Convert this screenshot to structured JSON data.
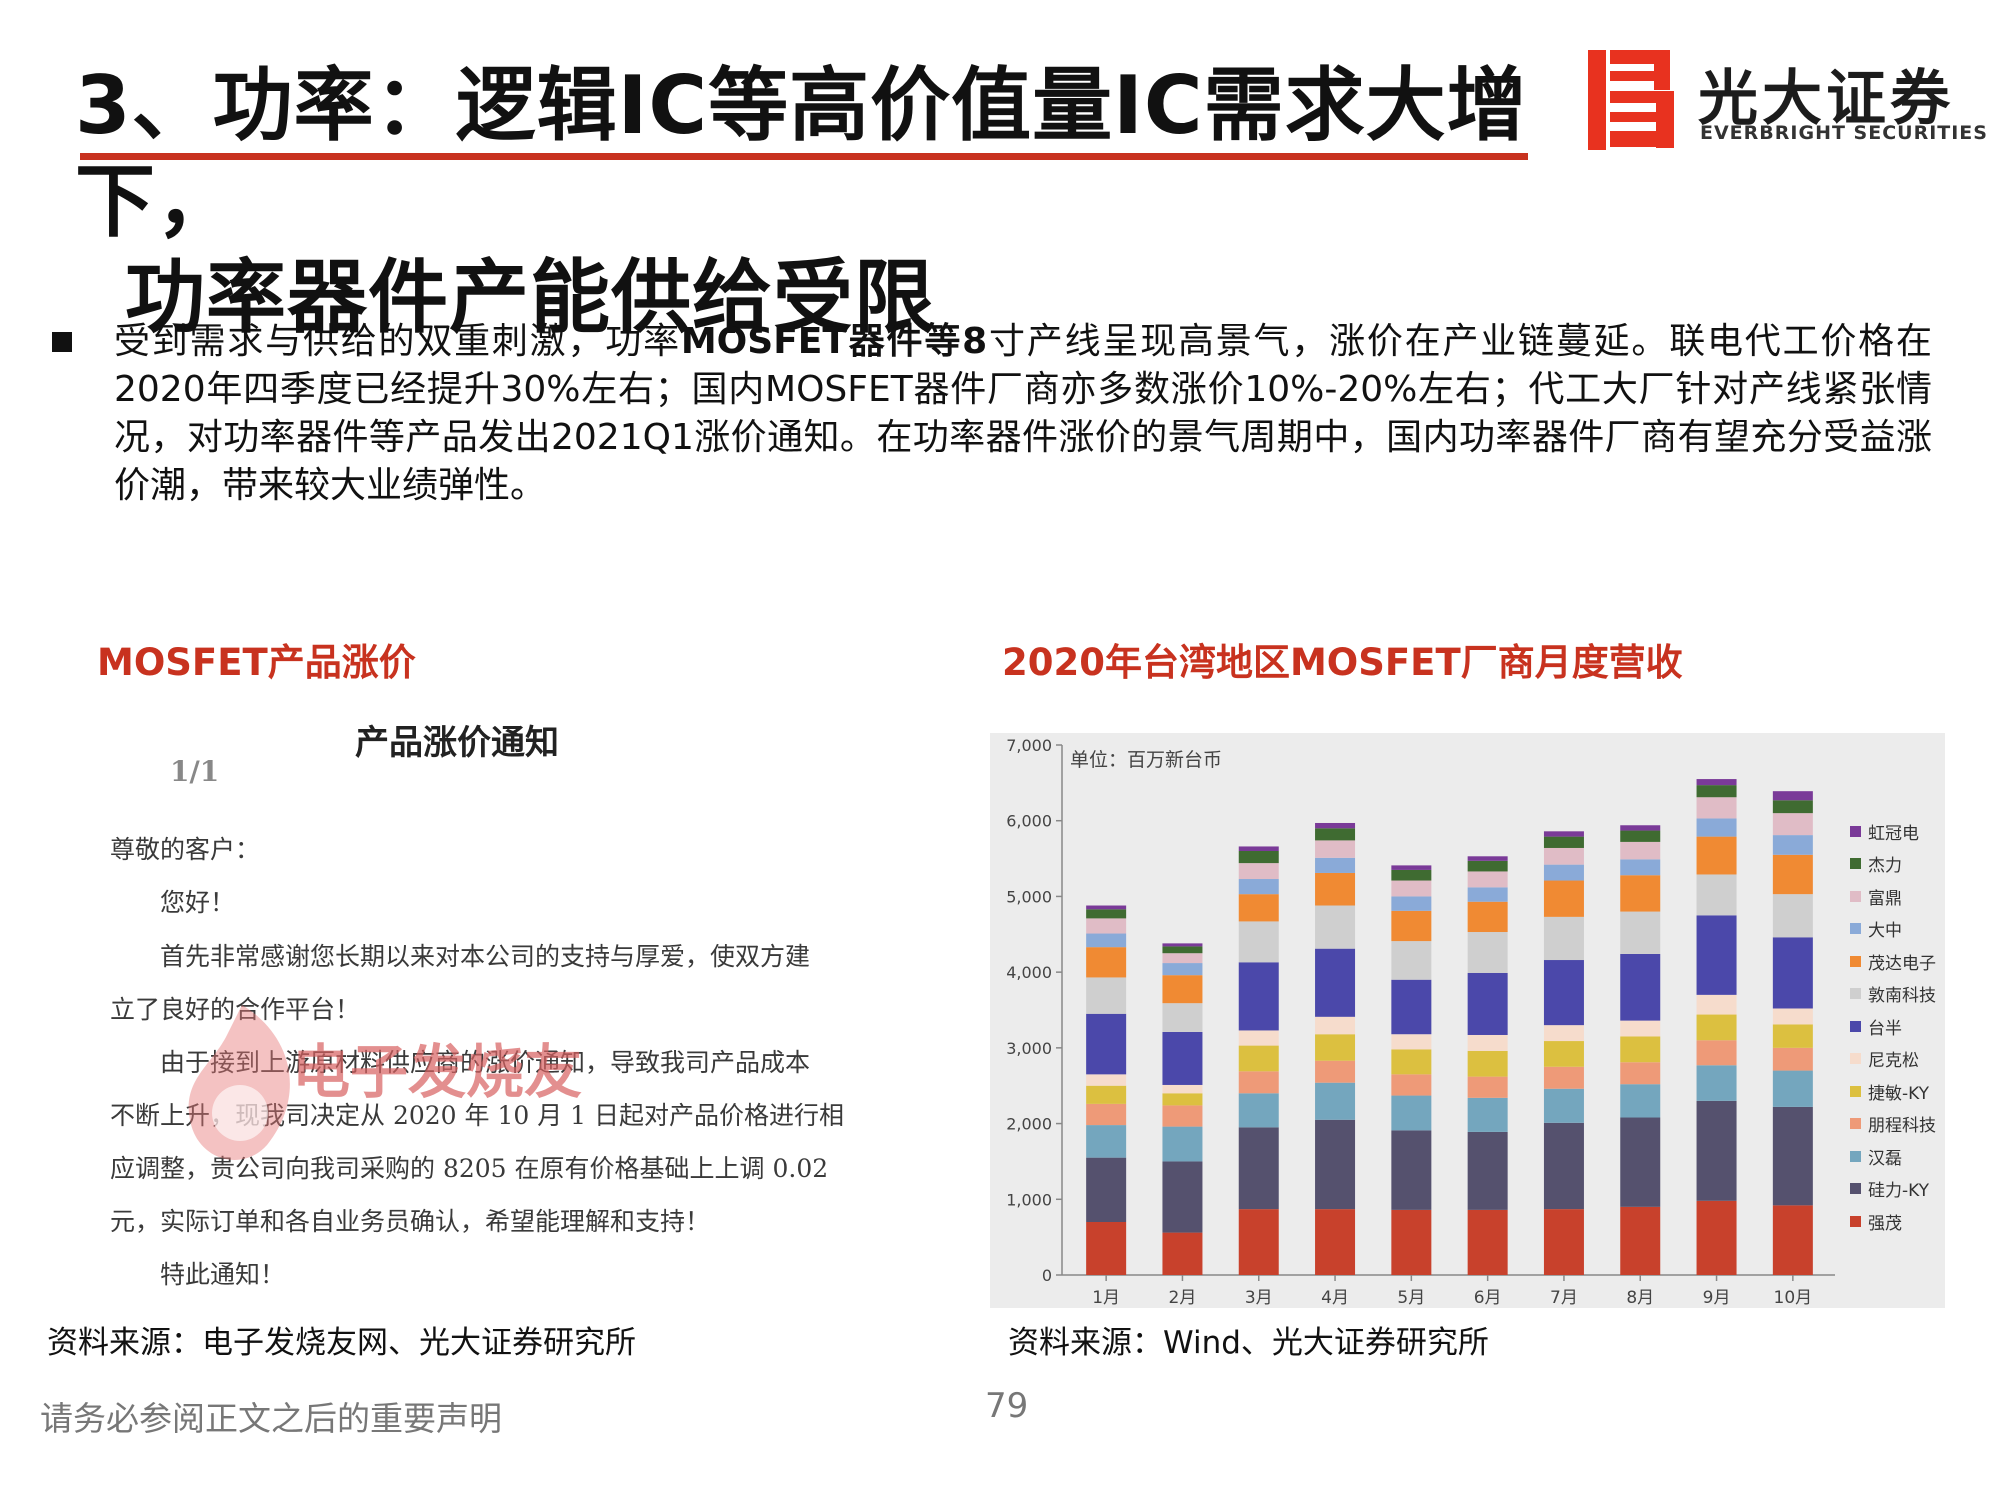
{
  "header": {
    "title_line1": "3、功率：逻辑IC等高价值量IC需求大增下，",
    "title_line2": "功率器件产能供给受限"
  },
  "logo": {
    "name_cn": "光大证券",
    "name_en": "EVERBRIGHT SECURITIES",
    "color": "#e8321f"
  },
  "bullet": {
    "lead": "受到需求与供给的双重刺激，功率",
    "bold1": "MOSFET",
    "mid1": "器件等",
    "bold2": "8",
    "rest": "寸产线呈现高景气，涨价在产业链蔓延。联电代工价格在2020年四季度已经提升30%左右；国内MOSFET器件厂商亦多数涨价10%-20%左右；代工大厂针对产线紧张情况，对功率器件等产品发出2021Q1涨价通知。在功率器件涨价的景气周期中，国内功率器件厂商有望充分受益涨价潮，带来较大业绩弹性。"
  },
  "left_panel": {
    "caption": "MOSFET产品涨价",
    "notice": {
      "title": "产品涨价通知",
      "page": "1/1",
      "lines": [
        "尊敬的客户：",
        "　　您好！",
        "　　首先非常感谢您长期以来对本公司的支持与厚爱，使双方建",
        "立了良好的合作平台！",
        "　　由于接到上游原材料供应商的涨价通知，导致我司产品成本",
        "不断上升，现我司决定从 2020 年 10 月 1 日起对产品价格进行相",
        "应调整，贵公司向我司采购的 8205 在原有价格基础上上调 0.02",
        "元，实际订单和各自业务员确认，希望能理解和支持！",
        "　　特此通知！"
      ]
    },
    "watermark": "电子发烧友",
    "source": "资料来源：电子发烧友网、光大证券研究所"
  },
  "right_panel": {
    "caption": "2020年台湾地区MOSFET厂商月度营收",
    "source": "资料来源：Wind、光大证券研究所"
  },
  "chart_data": {
    "type": "bar",
    "stacked": true,
    "unit_label": "单位：百万新台币",
    "categories": [
      "1月",
      "2月",
      "3月",
      "4月",
      "5月",
      "6月",
      "7月",
      "8月",
      "9月",
      "10月"
    ],
    "y_ticks": [
      "0",
      "1,000",
      "2,000",
      "3,000",
      "4,000",
      "5,000",
      "6,000",
      "7,000"
    ],
    "ylim": [
      0,
      7000
    ],
    "legend_position": "right",
    "grid": false,
    "series": [
      {
        "name": "强茂",
        "color": "#c8412c",
        "values": [
          700,
          560,
          870,
          870,
          860,
          860,
          870,
          900,
          980,
          920
        ]
      },
      {
        "name": "硅力-KY",
        "color": "#55516e",
        "values": [
          850,
          940,
          1080,
          1180,
          1050,
          1030,
          1140,
          1180,
          1320,
          1300
        ]
      },
      {
        "name": "汉磊",
        "color": "#74a6be",
        "values": [
          430,
          460,
          450,
          490,
          460,
          450,
          450,
          440,
          470,
          480
        ]
      },
      {
        "name": "朋程科技",
        "color": "#ee9a78",
        "values": [
          280,
          280,
          290,
          290,
          280,
          280,
          290,
          290,
          330,
          300
        ]
      },
      {
        "name": "捷敏-KY",
        "color": "#dcc040",
        "values": [
          240,
          160,
          340,
          350,
          330,
          340,
          340,
          340,
          340,
          310
        ]
      },
      {
        "name": "尼克松",
        "color": "#f6dccc",
        "values": [
          150,
          110,
          200,
          230,
          200,
          210,
          210,
          210,
          260,
          210
        ]
      },
      {
        "name": "台半",
        "color": "#4b48aa",
        "values": [
          800,
          700,
          900,
          900,
          720,
          820,
          860,
          880,
          1050,
          940
        ]
      },
      {
        "name": "敦南科技",
        "color": "#cfcfcf",
        "values": [
          480,
          380,
          540,
          570,
          510,
          540,
          570,
          560,
          540,
          570
        ]
      },
      {
        "name": "茂达电子",
        "color": "#f08a33",
        "values": [
          400,
          370,
          360,
          430,
          400,
          400,
          480,
          480,
          500,
          520
        ]
      },
      {
        "name": "大中",
        "color": "#8aaad8",
        "values": [
          180,
          160,
          200,
          200,
          190,
          190,
          210,
          210,
          240,
          260
        ]
      },
      {
        "name": "富鼎",
        "color": "#e0bcc6",
        "values": [
          200,
          130,
          210,
          230,
          210,
          210,
          220,
          230,
          280,
          290
        ]
      },
      {
        "name": "杰力",
        "color": "#3f6b31",
        "values": [
          120,
          90,
          160,
          160,
          140,
          140,
          150,
          150,
          160,
          170
        ]
      },
      {
        "name": "虹冠电",
        "color": "#7a3a98",
        "values": [
          50,
          40,
          60,
          70,
          60,
          60,
          70,
          70,
          80,
          120
        ]
      }
    ]
  },
  "footer": {
    "disclaimer": "请务必参阅正文之后的重要声明",
    "page": "79"
  }
}
